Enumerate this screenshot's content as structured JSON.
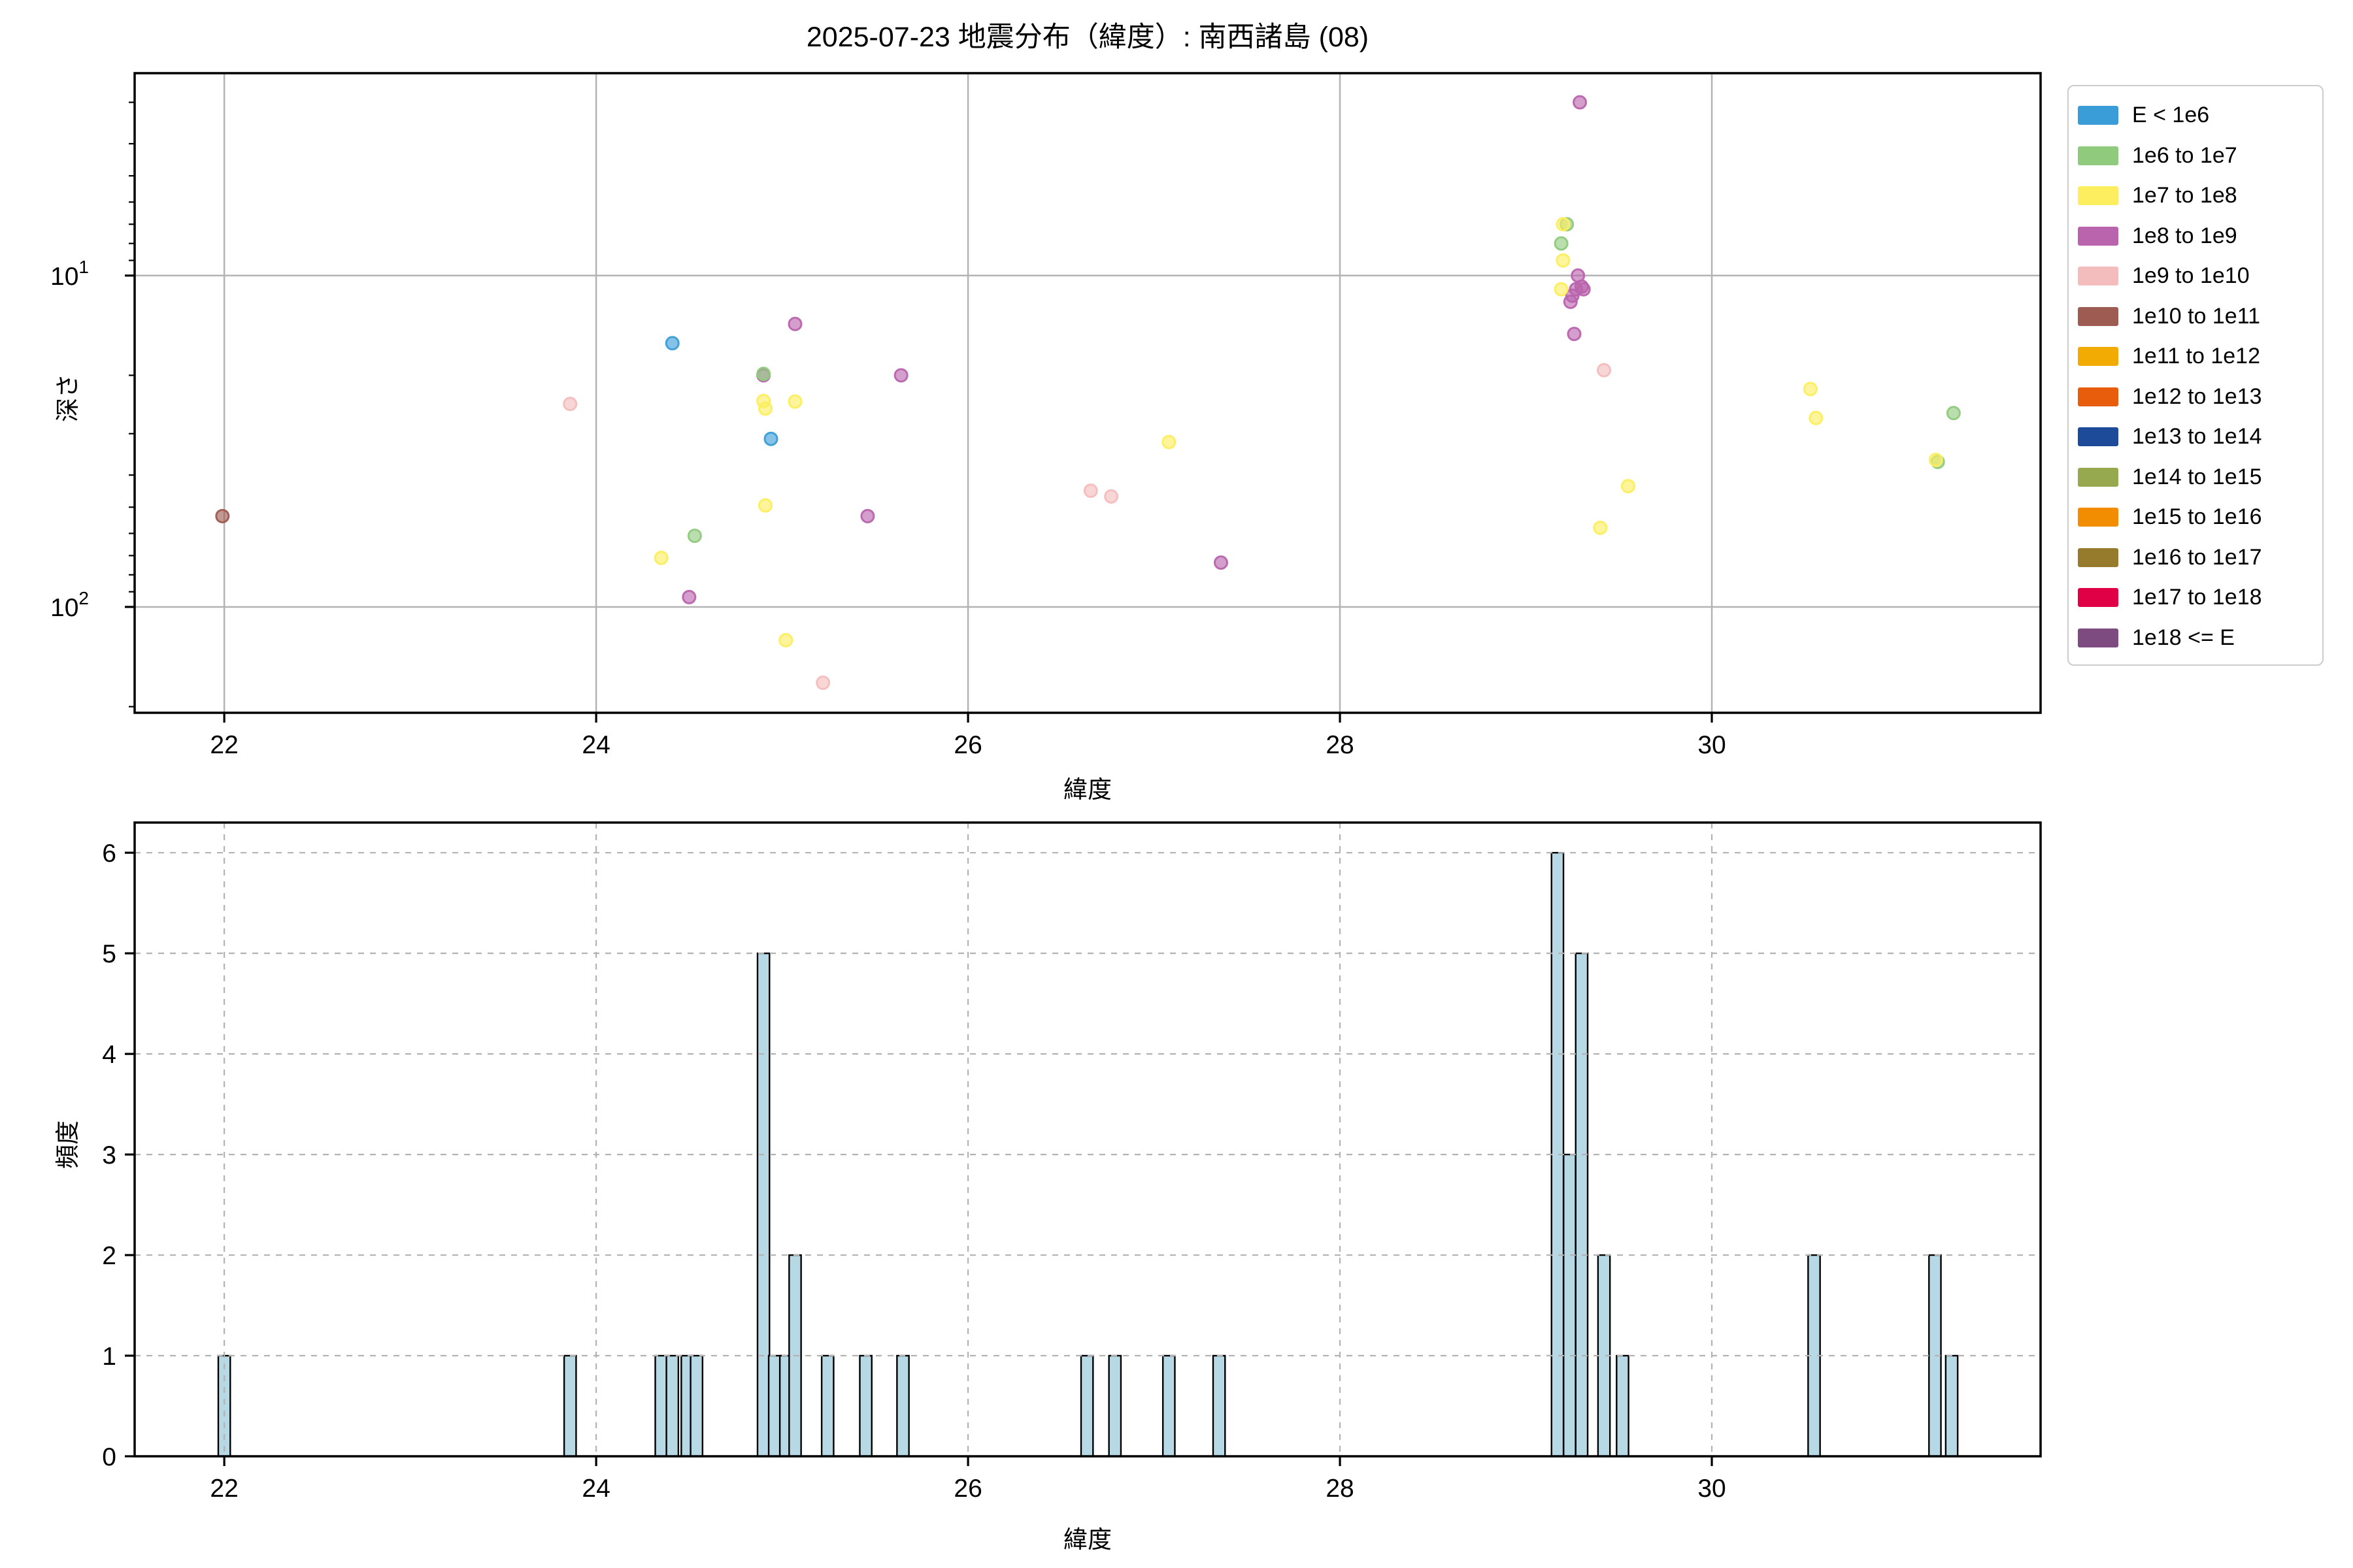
{
  "title": "2025-07-23 地震分布（緯度）: 南西諸島 (08)",
  "legend": {
    "entries": [
      {
        "label": "E < 1e6",
        "color": "#3a9dd8"
      },
      {
        "label": "1e6 to 1e7",
        "color": "#8fca7d"
      },
      {
        "label": "1e7 to 1e8",
        "color": "#fcee5e"
      },
      {
        "label": "1e8 to 1e9",
        "color": "#b964ad"
      },
      {
        "label": "1e9 to 1e10",
        "color": "#f4bdbd"
      },
      {
        "label": "1e10 to 1e11",
        "color": "#9e5b51"
      },
      {
        "label": "1e11 to 1e12",
        "color": "#f2ab02"
      },
      {
        "label": "1e12 to 1e13",
        "color": "#e75d0c"
      },
      {
        "label": "1e13 to 1e14",
        "color": "#1d4a99"
      },
      {
        "label": "1e14 to 1e15",
        "color": "#96a94e"
      },
      {
        "label": "1e15 to 1e16",
        "color": "#f28c00"
      },
      {
        "label": "1e16 to 1e17",
        "color": "#967b2d"
      },
      {
        "label": "1e17 to 1e18",
        "color": "#e00045"
      },
      {
        "label": "1e18 <= E",
        "color": "#7e4b80"
      }
    ]
  },
  "chart_data": [
    {
      "type": "scatter",
      "name": "depth-by-latitude",
      "xlabel": "緯度",
      "ylabel": "深さ",
      "x_ticks": [
        22,
        24,
        26,
        28,
        30
      ],
      "y_scale": "log-inverted",
      "y_major_ticks": [
        10,
        100
      ],
      "y_minor_ticks": [
        3,
        4,
        5,
        6,
        7,
        8,
        9,
        20,
        30,
        40,
        50,
        60,
        70,
        80,
        90,
        200
      ],
      "xlim": [
        21.518,
        31.768
      ],
      "ylim": [
        2.45,
        208.7
      ],
      "points": [
        {
          "lat": 23.86,
          "depth": 24.4,
          "bin": 4
        },
        {
          "lat": 25.22,
          "depth": 169.4,
          "bin": 4
        },
        {
          "lat": 26.66,
          "depth": 44.6,
          "bin": 4
        },
        {
          "lat": 26.77,
          "depth": 46.4,
          "bin": 4
        },
        {
          "lat": 29.42,
          "depth": 19.3,
          "bin": 4
        },
        {
          "lat": 21.99,
          "depth": 53.2,
          "bin": 5
        },
        {
          "lat": 24.9,
          "depth": 20.0,
          "bin": 3
        },
        {
          "lat": 25.07,
          "depth": 14.0,
          "bin": 3
        },
        {
          "lat": 25.64,
          "depth": 20.0,
          "bin": 3
        },
        {
          "lat": 24.5,
          "depth": 93.4,
          "bin": 3
        },
        {
          "lat": 25.46,
          "depth": 53.2,
          "bin": 3
        },
        {
          "lat": 27.36,
          "depth": 73.5,
          "bin": 3
        },
        {
          "lat": 29.29,
          "depth": 3.0,
          "bin": 3
        },
        {
          "lat": 29.28,
          "depth": 10.0,
          "bin": 3
        },
        {
          "lat": 29.27,
          "depth": 11.0,
          "bin": 3
        },
        {
          "lat": 29.31,
          "depth": 11.0,
          "bin": 3
        },
        {
          "lat": 29.3,
          "depth": 10.8,
          "bin": 3
        },
        {
          "lat": 29.24,
          "depth": 12.0,
          "bin": 3
        },
        {
          "lat": 29.25,
          "depth": 11.5,
          "bin": 3
        },
        {
          "lat": 29.26,
          "depth": 15.0,
          "bin": 3
        },
        {
          "lat": 24.41,
          "depth": 16.0,
          "bin": 0
        },
        {
          "lat": 24.94,
          "depth": 31.1,
          "bin": 0
        },
        {
          "lat": 24.53,
          "depth": 61.0,
          "bin": 1
        },
        {
          "lat": 24.9,
          "depth": 19.8,
          "bin": 1
        },
        {
          "lat": 29.22,
          "depth": 7.0,
          "bin": 1
        },
        {
          "lat": 29.19,
          "depth": 8.0,
          "bin": 1
        },
        {
          "lat": 31.3,
          "depth": 26.0,
          "bin": 1
        },
        {
          "lat": 31.215,
          "depth": 36.5,
          "bin": 1
        },
        {
          "lat": 24.35,
          "depth": 71.1,
          "bin": 2
        },
        {
          "lat": 24.9,
          "depth": 23.9,
          "bin": 2
        },
        {
          "lat": 24.91,
          "depth": 25.2,
          "bin": 2
        },
        {
          "lat": 25.07,
          "depth": 24.0,
          "bin": 2
        },
        {
          "lat": 24.91,
          "depth": 49.4,
          "bin": 2
        },
        {
          "lat": 25.02,
          "depth": 126.0,
          "bin": 2
        },
        {
          "lat": 27.08,
          "depth": 31.8,
          "bin": 2
        },
        {
          "lat": 29.2,
          "depth": 7.0,
          "bin": 2
        },
        {
          "lat": 29.2,
          "depth": 9.0,
          "bin": 2
        },
        {
          "lat": 29.19,
          "depth": 11.0,
          "bin": 2
        },
        {
          "lat": 29.55,
          "depth": 43.2,
          "bin": 2
        },
        {
          "lat": 29.4,
          "depth": 57.7,
          "bin": 2
        },
        {
          "lat": 30.53,
          "depth": 22.0,
          "bin": 2
        },
        {
          "lat": 30.56,
          "depth": 26.9,
          "bin": 2
        },
        {
          "lat": 31.205,
          "depth": 36.0,
          "bin": 2
        }
      ]
    },
    {
      "type": "bar",
      "name": "latitude-histogram",
      "xlabel": "緯度",
      "ylabel": "頻度",
      "x_ticks": [
        22,
        24,
        26,
        28,
        30
      ],
      "y_ticks": [
        0,
        1,
        2,
        3,
        4,
        5,
        6
      ],
      "xlim": [
        21.518,
        31.768
      ],
      "ylim": [
        0,
        6.3
      ],
      "bar_width": 0.0643,
      "bars": [
        {
          "lat": 22.0,
          "count": 1
        },
        {
          "lat": 23.86,
          "count": 1
        },
        {
          "lat": 24.35,
          "count": 1
        },
        {
          "lat": 24.41,
          "count": 1
        },
        {
          "lat": 24.49,
          "count": 1
        },
        {
          "lat": 24.54,
          "count": 1
        },
        {
          "lat": 24.9,
          "count": 5
        },
        {
          "lat": 24.96,
          "count": 1
        },
        {
          "lat": 25.02,
          "count": 1
        },
        {
          "lat": 25.07,
          "count": 2
        },
        {
          "lat": 25.245,
          "count": 1
        },
        {
          "lat": 25.45,
          "count": 1
        },
        {
          "lat": 25.65,
          "count": 1
        },
        {
          "lat": 26.64,
          "count": 1
        },
        {
          "lat": 26.79,
          "count": 1
        },
        {
          "lat": 27.08,
          "count": 1
        },
        {
          "lat": 27.35,
          "count": 1
        },
        {
          "lat": 29.17,
          "count": 6
        },
        {
          "lat": 29.235,
          "count": 3
        },
        {
          "lat": 29.3,
          "count": 5
        },
        {
          "lat": 29.42,
          "count": 2
        },
        {
          "lat": 29.52,
          "count": 1
        },
        {
          "lat": 30.55,
          "count": 2
        },
        {
          "lat": 31.2,
          "count": 2
        },
        {
          "lat": 31.29,
          "count": 1
        }
      ]
    }
  ],
  "colors": {
    "hist_fill": "#b7d9e6",
    "grid": "#b3b3b3",
    "spine": "#000000",
    "background": "#ffffff"
  }
}
